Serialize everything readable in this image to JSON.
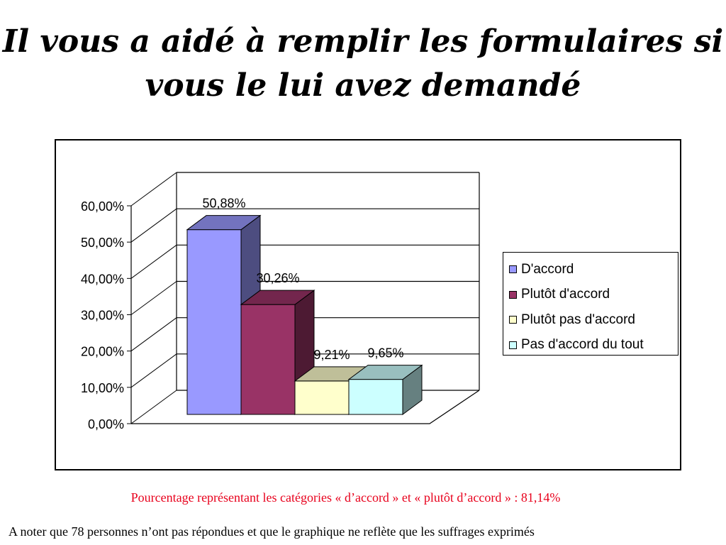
{
  "title": {
    "line1": "Il vous a aidé à remplir les formulaires si",
    "line2": "vous le lui avez demandé"
  },
  "chart_data": {
    "type": "bar",
    "categories": [
      "D'accord",
      "Plutôt d'accord",
      "Plutôt pas d'accord",
      "Pas d'accord du tout"
    ],
    "values": [
      50.88,
      30.26,
      9.21,
      9.65
    ],
    "data_labels": [
      "50,88%",
      "30,26%",
      "9,21%",
      "9,65%"
    ],
    "colors": [
      "#9999ff",
      "#993366",
      "#ffffcc",
      "#ccffff"
    ],
    "ylim": [
      0,
      60
    ],
    "yticks": [
      "0,00%",
      "10,00%",
      "20,00%",
      "30,00%",
      "40,00%",
      "50,00%",
      "60,00%"
    ],
    "grid": true,
    "legend_position": "right",
    "style": "3d"
  },
  "notes": {
    "percentage_note": "Pourcentage représentant les catégories « d’accord » et « plutôt d’accord » : 81,14%",
    "footnote": "A noter que 78 personnes n’ont pas répondues et que le graphique ne reflète que les suffrages exprimés"
  }
}
